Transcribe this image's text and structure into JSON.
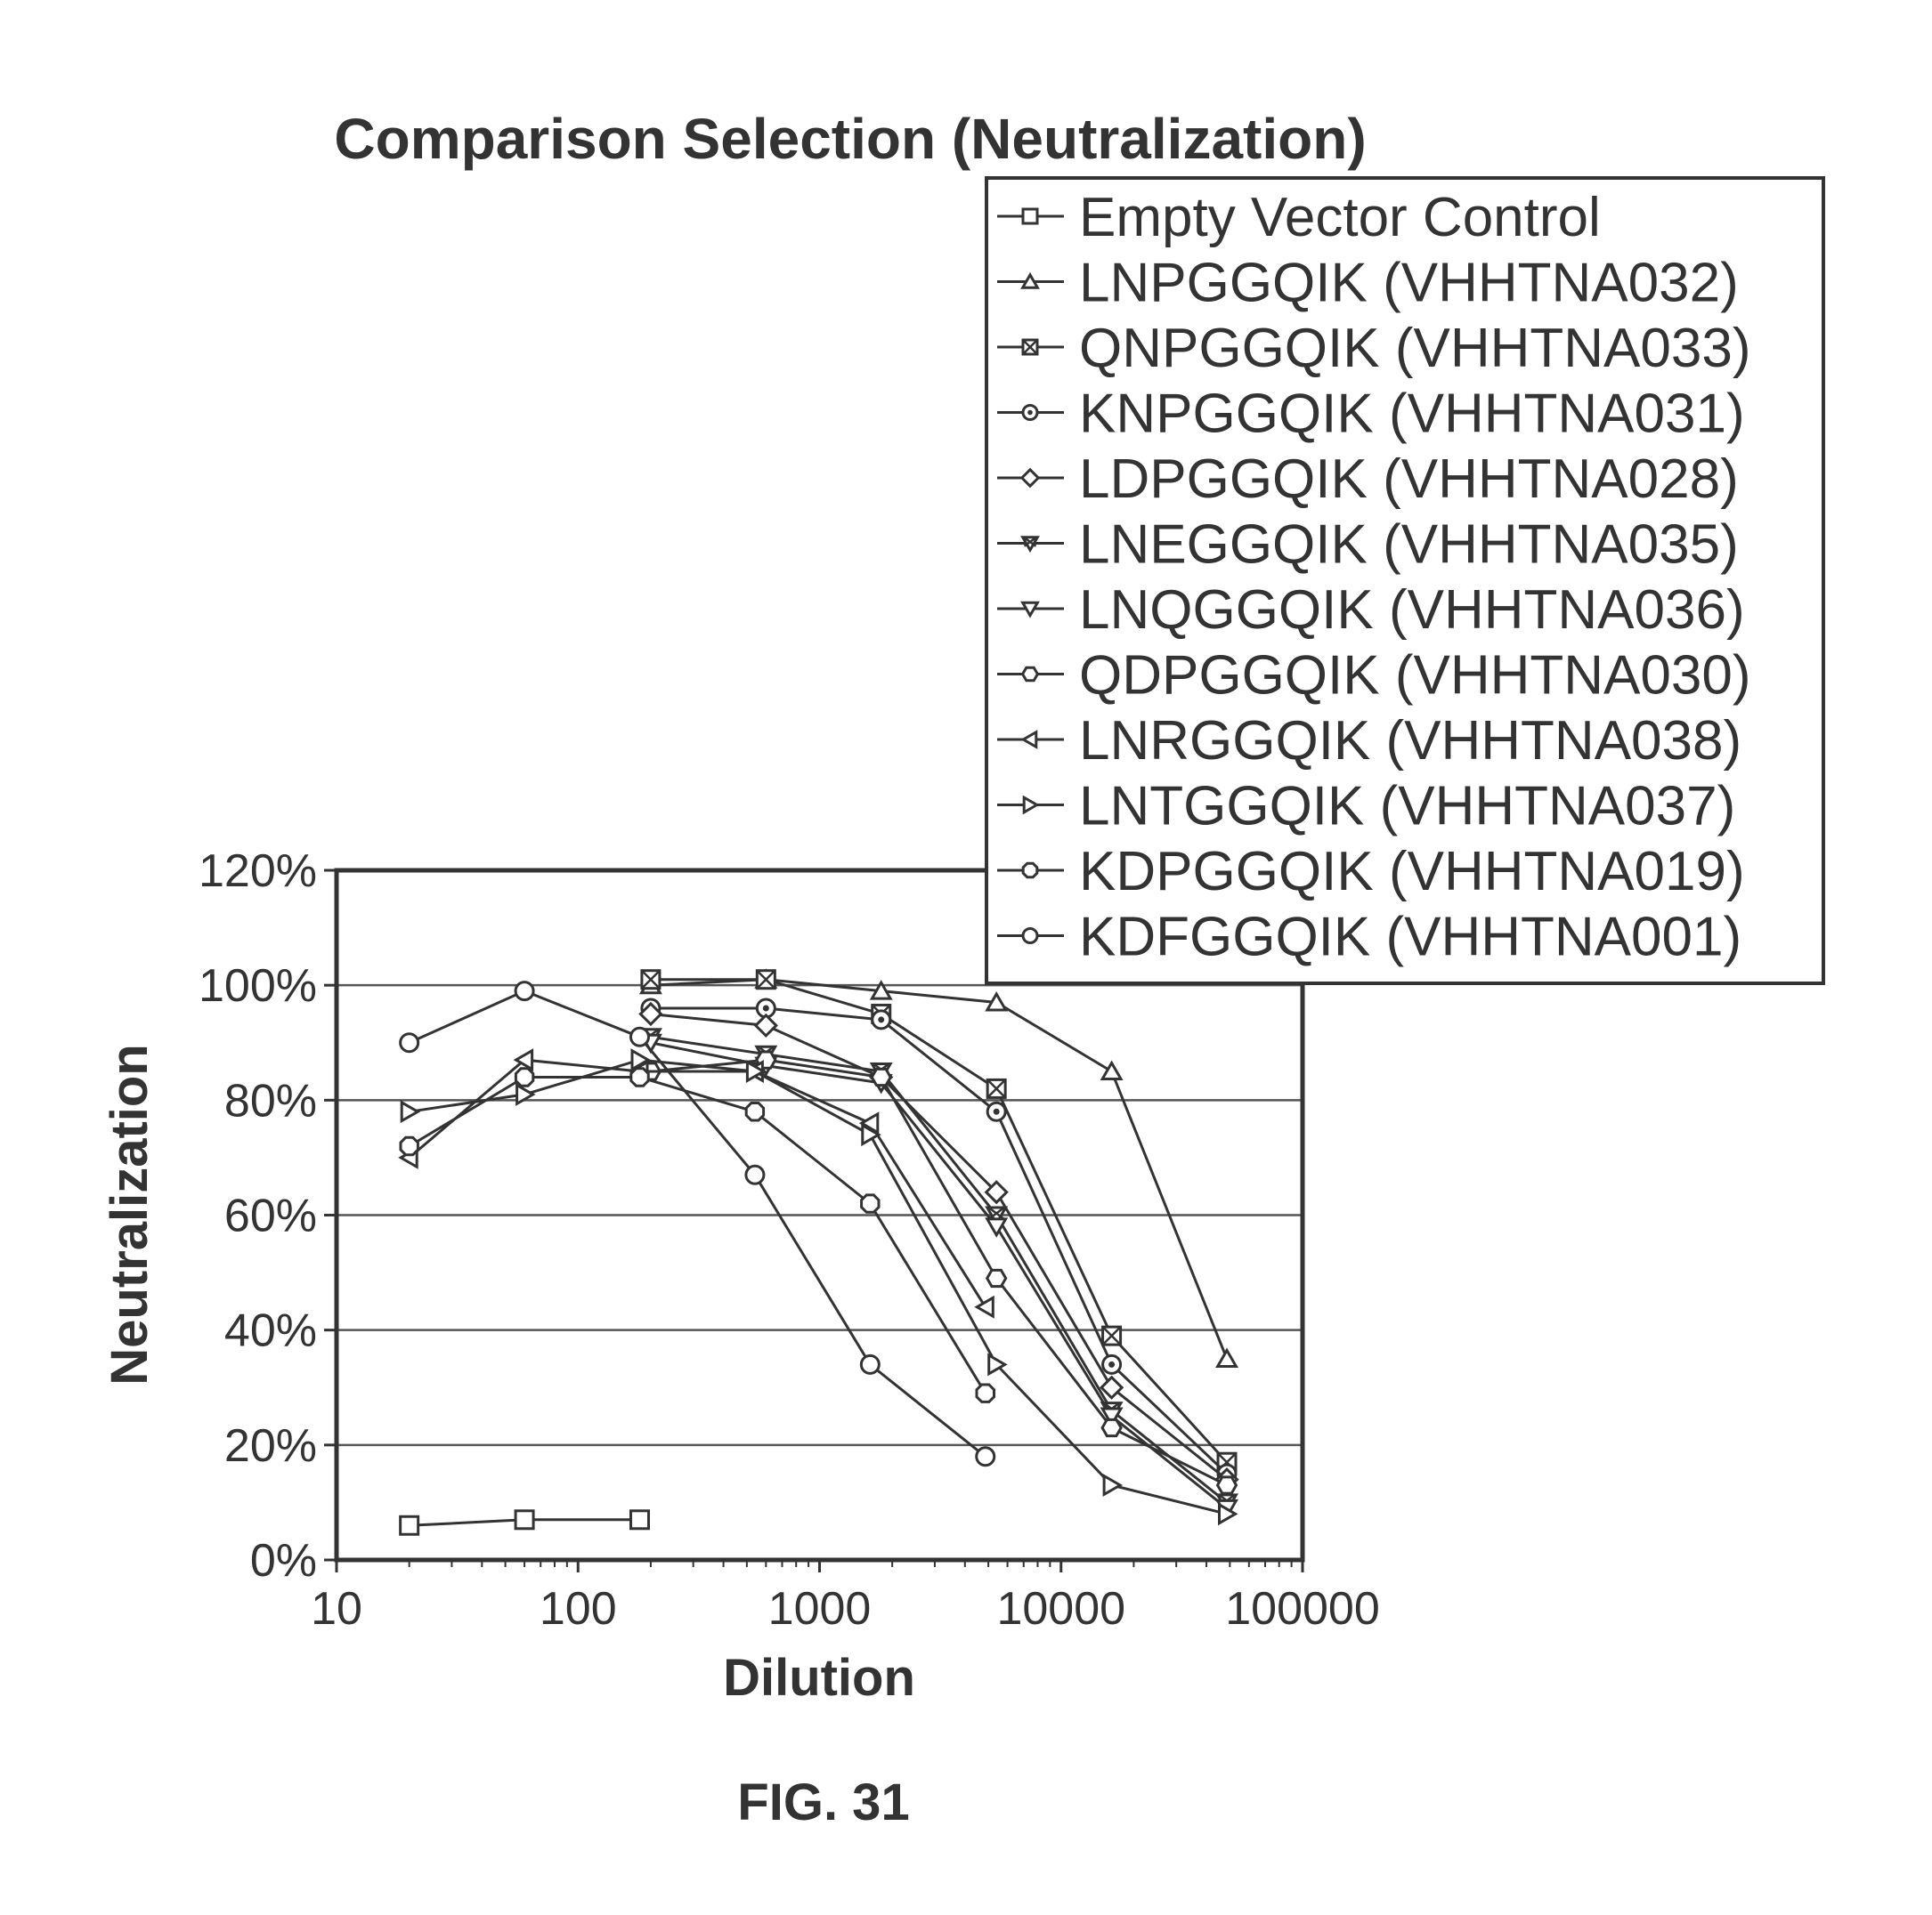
{
  "figure_label": "FIG. 31",
  "chart_data": {
    "type": "line",
    "title": "Comparison Selection (Neutralization)",
    "xlabel": "Dilution",
    "ylabel": "Neutralization",
    "x_scale": "log",
    "xlim": [
      10,
      100000
    ],
    "ylim": [
      0,
      120
    ],
    "x_ticks": [
      "10",
      "100",
      "1000",
      "10000",
      "100000"
    ],
    "y_ticks": [
      "0%",
      "20%",
      "40%",
      "60%",
      "80%",
      "100%",
      "120%"
    ],
    "grid": "horizontal",
    "legend_position": "top-right",
    "series": [
      {
        "name": "Empty Vector Control",
        "marker": "square",
        "x": [
          20,
          60,
          180
        ],
        "y": [
          6,
          7,
          7
        ]
      },
      {
        "name": "LNPGGQIK (VHHTNA032)",
        "marker": "triangle-up",
        "x": [
          200,
          600,
          1800,
          5400,
          16200,
          48600
        ],
        "y": [
          100,
          101,
          99,
          97,
          85,
          35
        ]
      },
      {
        "name": "QNPGGQIK (VHHTNA033)",
        "marker": "square-x",
        "x": [
          200,
          600,
          1800,
          5400,
          16200,
          48600
        ],
        "y": [
          101,
          101,
          95,
          82,
          39,
          17
        ]
      },
      {
        "name": "KNPGGQIK (VHHTNA031)",
        "marker": "circle-dot",
        "x": [
          200,
          600,
          1800,
          5400,
          16200,
          48600
        ],
        "y": [
          96,
          96,
          94,
          78,
          34,
          15
        ]
      },
      {
        "name": "LDPGGQIK (VHHTNA028)",
        "marker": "diamond",
        "x": [
          200,
          600,
          1800,
          5400,
          16200,
          48600
        ],
        "y": [
          95,
          93,
          84,
          64,
          30,
          14
        ]
      },
      {
        "name": "LNEGGQIK (VHHTNA035)",
        "marker": "triangle-down-x",
        "x": [
          200,
          600,
          1800,
          5400,
          16200,
          48600
        ],
        "y": [
          91,
          88,
          85,
          60,
          26,
          10
        ]
      },
      {
        "name": "LNQGGQIK (VHHTNA036)",
        "marker": "triangle-down",
        "x": [
          200,
          600,
          1800,
          5400,
          16200,
          48600
        ],
        "y": [
          90,
          86,
          83,
          58,
          25,
          9
        ]
      },
      {
        "name": "QDPGGQIK (VHHTNA030)",
        "marker": "hexagon",
        "x": [
          200,
          600,
          1800,
          5400,
          16200,
          48600
        ],
        "y": [
          85,
          87,
          84,
          49,
          23,
          13
        ]
      },
      {
        "name": "LNRGGQIK (VHHTNA038)",
        "marker": "triangle-left",
        "x": [
          20,
          60,
          180,
          540,
          1620,
          4860
        ],
        "y": [
          70,
          87,
          85,
          85,
          76,
          44
        ]
      },
      {
        "name": "LNTGGQIK (VHHTNA037)",
        "marker": "triangle-right",
        "x": [
          20,
          60,
          180,
          540,
          1620,
          5400,
          16200,
          48600
        ],
        "y": [
          78,
          81,
          87,
          85,
          74,
          34,
          13,
          8
        ]
      },
      {
        "name": "KDPGGQIK (VHHTNA019)",
        "marker": "octagon",
        "x": [
          20,
          60,
          180,
          540,
          1620,
          4860
        ],
        "y": [
          72,
          84,
          84,
          78,
          62,
          29
        ]
      },
      {
        "name": "KDFGGQIK (VHHTNA001)",
        "marker": "circle",
        "x": [
          20,
          60,
          180,
          540,
          1620,
          4860
        ],
        "y": [
          90,
          99,
          91,
          67,
          34,
          18
        ]
      }
    ]
  }
}
